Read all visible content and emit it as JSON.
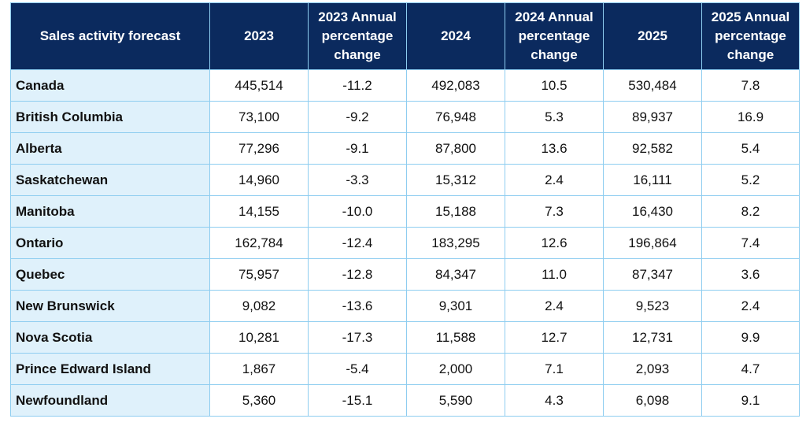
{
  "table": {
    "headers": [
      "Sales activity forecast",
      "2023",
      "2023 Annual percentage change",
      "2024",
      "2024 Annual percentage change",
      "2025",
      "2025 Annual percentage change"
    ],
    "rows": [
      [
        "Canada",
        "445,514",
        "-11.2",
        "492,083",
        "10.5",
        "530,484",
        "7.8"
      ],
      [
        "British Columbia",
        "73,100",
        "-9.2",
        "76,948",
        "5.3",
        "89,937",
        "16.9"
      ],
      [
        "Alberta",
        "77,296",
        "-9.1",
        "87,800",
        "13.6",
        "92,582",
        "5.4"
      ],
      [
        "Saskatchewan",
        "14,960",
        "-3.3",
        "15,312",
        "2.4",
        "16,111",
        "5.2"
      ],
      [
        "Manitoba",
        "14,155",
        "-10.0",
        "15,188",
        "7.3",
        "16,430",
        "8.2"
      ],
      [
        "Ontario",
        "162,784",
        "-12.4",
        "183,295",
        "12.6",
        "196,864",
        "7.4"
      ],
      [
        "Quebec",
        "75,957",
        "-12.8",
        "84,347",
        "11.0",
        "87,347",
        "3.6"
      ],
      [
        "New Brunswick",
        "9,082",
        "-13.6",
        "9,301",
        "2.4",
        "9,523",
        "2.4"
      ],
      [
        "Nova Scotia",
        "10,281",
        "-17.3",
        "11,588",
        "12.7",
        "12,731",
        "9.9"
      ],
      [
        "Prince Edward Island",
        "1,867",
        "-5.4",
        "2,000",
        "7.1",
        "2,093",
        "4.7"
      ],
      [
        "Newfoundland",
        "5,360",
        "-15.1",
        "5,590",
        "4.3",
        "6,098",
        "9.1"
      ]
    ]
  }
}
